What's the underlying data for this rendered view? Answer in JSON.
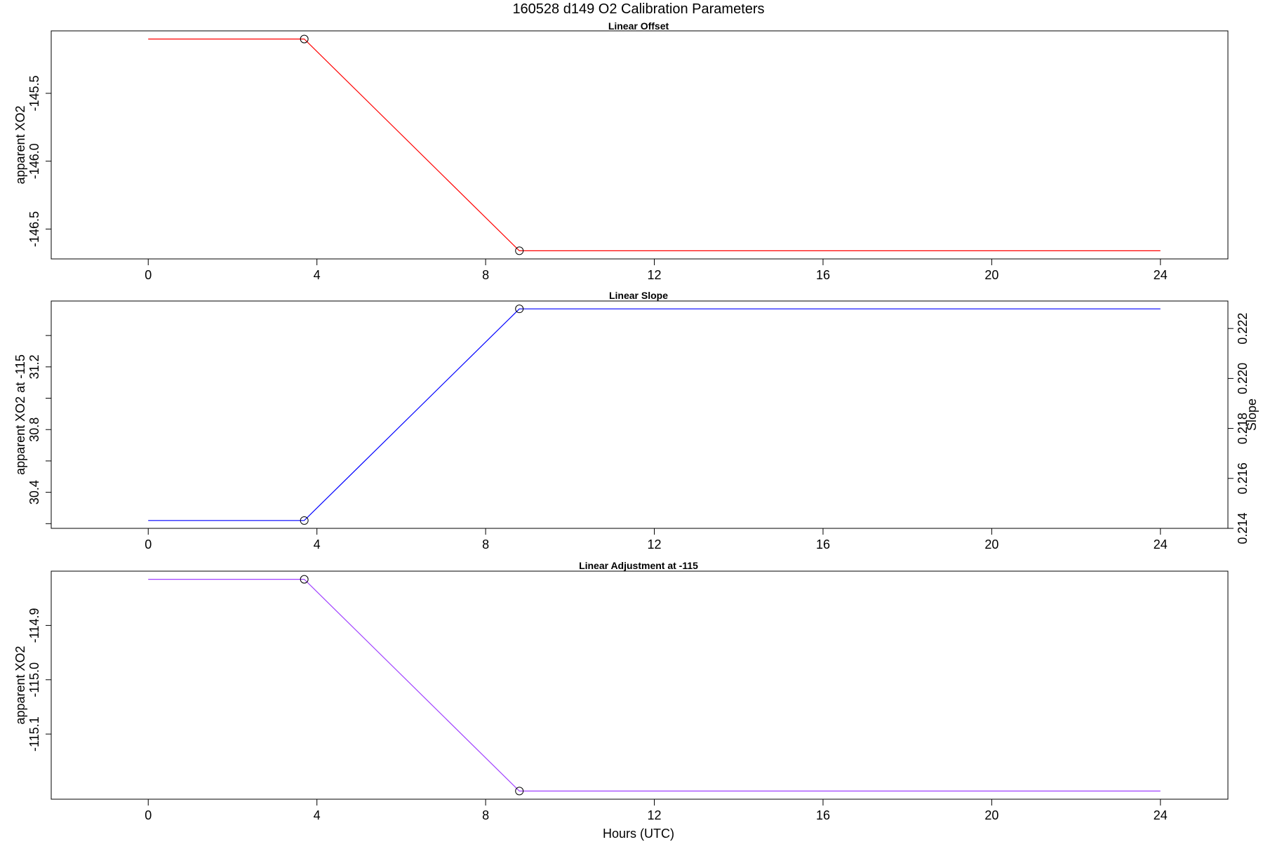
{
  "figure": {
    "title": "160528   d149   O2 Calibration Parameters",
    "xlabel": "Hours (UTC)"
  },
  "chart_data": [
    {
      "type": "line",
      "title": "Linear Offset",
      "xlabel": "",
      "ylabel": "apparent XO2",
      "xlim": [
        -2.3,
        25.6
      ],
      "ylim": [
        -146.72,
        -145.04
      ],
      "x_ticks": [
        "0",
        "4",
        "8",
        "12",
        "16",
        "20",
        "24"
      ],
      "y_ticks": [
        "-145.5",
        "-146.0",
        "-146.5"
      ],
      "y_tick_values": [
        -145.5,
        -146.0,
        -146.5
      ],
      "grid": false,
      "color": "#ff0000",
      "series": [
        {
          "x": [
            0,
            3.7,
            8.8,
            24
          ],
          "y": [
            -145.1,
            -145.1,
            -146.66,
            -146.66
          ]
        }
      ],
      "markers": [
        {
          "x": 3.7,
          "y": -145.1
        },
        {
          "x": 8.8,
          "y": -146.66
        }
      ]
    },
    {
      "type": "line",
      "title": "Linear Slope",
      "xlabel": "",
      "ylabel": "apparent XO2 at -115",
      "ylabel_right": "Slope",
      "xlim": [
        -2.3,
        25.6
      ],
      "ylim": [
        30.17,
        31.62
      ],
      "y_ticks": [
        "30.4",
        "30.8",
        "31.2"
      ],
      "y_tick_values": [
        30.4,
        30.8,
        31.2
      ],
      "y_minor_ticks": [
        30.2,
        30.6,
        31.0,
        31.4
      ],
      "y2lim": [
        0.214,
        0.2231
      ],
      "y2_ticks": [
        "0.214",
        "0.216",
        "0.218",
        "0.220",
        "0.222"
      ],
      "y2_tick_values": [
        0.214,
        0.216,
        0.218,
        0.22,
        0.222
      ],
      "x_ticks": [
        "0",
        "4",
        "8",
        "12",
        "16",
        "20",
        "24"
      ],
      "grid": false,
      "color": "#0000ff",
      "series": [
        {
          "x": [
            0,
            3.7,
            8.8,
            24
          ],
          "y": [
            30.22,
            30.22,
            31.57,
            31.57
          ]
        }
      ],
      "markers": [
        {
          "x": 3.7,
          "y": 30.22
        },
        {
          "x": 8.8,
          "y": 31.57
        }
      ]
    },
    {
      "type": "line",
      "title": "Linear Adjustment at -115",
      "xlabel": "Hours (UTC)",
      "ylabel": "apparent XO2",
      "xlim": [
        -2.3,
        25.6
      ],
      "ylim": [
        -115.22,
        -114.8
      ],
      "x_ticks": [
        "0",
        "4",
        "8",
        "12",
        "16",
        "20",
        "24"
      ],
      "y_ticks": [
        "-114.9",
        "-115.0",
        "-115.1"
      ],
      "y_tick_values": [
        -114.9,
        -115.0,
        -115.1
      ],
      "grid": false,
      "color": "#a040ff",
      "series": [
        {
          "x": [
            0,
            3.7,
            8.8,
            24
          ],
          "y": [
            -114.815,
            -114.815,
            -115.205,
            -115.205
          ]
        }
      ],
      "markers": [
        {
          "x": 3.7,
          "y": -114.815
        },
        {
          "x": 8.8,
          "y": -115.205
        }
      ]
    }
  ]
}
